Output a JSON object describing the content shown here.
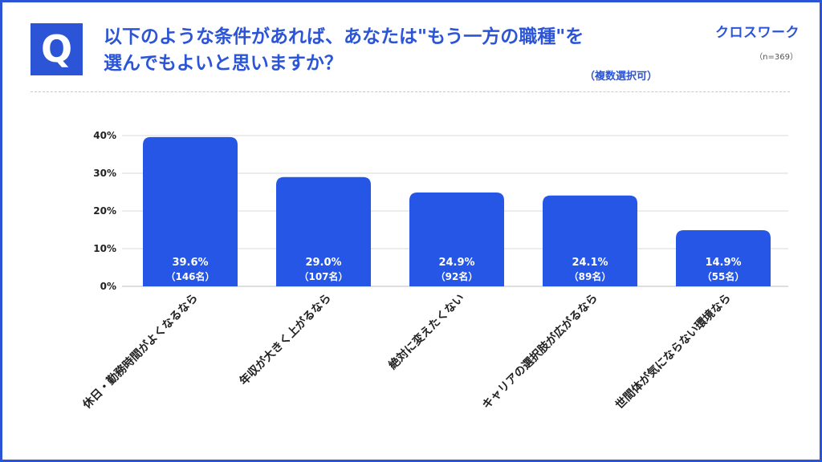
{
  "header": {
    "q_mark": "Q",
    "title_line1": "以下のような条件があれば、あなたは\"もう一方の職種\"を",
    "title_line2": "選んでもよいと思いますか？",
    "brand": "クロスワーク",
    "sample_size": "（n=369）",
    "multi_select": "（複数選択可）"
  },
  "colors": {
    "accent": "#2b55d6",
    "bar": "#2656e6",
    "grid": "#d9d9d9"
  },
  "chart_data": {
    "type": "bar",
    "title": "以下のような条件があれば、あなたは\"もう一方の職種\"を選んでもよいと思いますか？",
    "xlabel": "",
    "ylabel": "",
    "ylim": [
      0,
      40
    ],
    "yticks": [
      0,
      10,
      20,
      30,
      40
    ],
    "ytick_labels": [
      "0%",
      "10%",
      "20%",
      "30%",
      "40%"
    ],
    "grid": true,
    "categories": [
      "休日・勤務時間がよくなるなら",
      "年収が大きく上がるなら",
      "絶対に変えたくない",
      "キャリアの選択肢が広がるなら",
      "世間体が気にならない環境なら"
    ],
    "values": [
      39.6,
      29.0,
      24.9,
      24.1,
      14.9
    ],
    "value_labels": [
      "39.6%",
      "29.0%",
      "24.9%",
      "24.1%",
      "14.9%"
    ],
    "count_labels": [
      "（146名）",
      "（107名）",
      "（92名）",
      "（89名）",
      "（55名）"
    ]
  }
}
